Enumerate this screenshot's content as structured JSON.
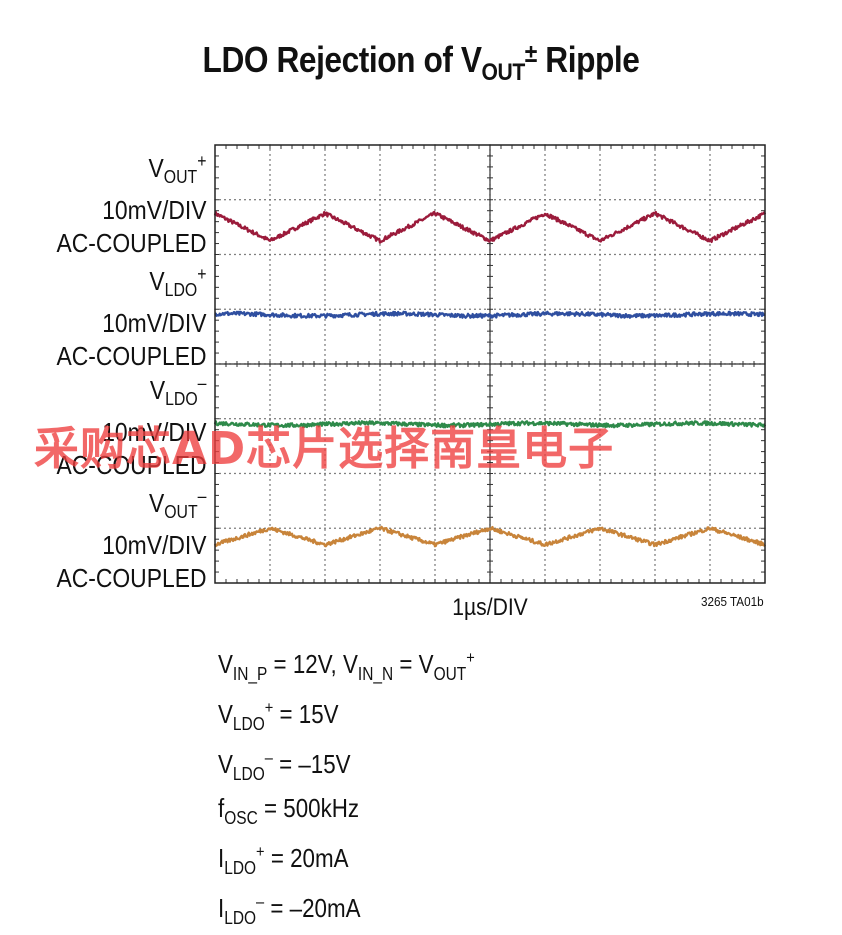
{
  "title": {
    "prefix": "LDO Rejection of V",
    "sub": "OUT",
    "sup": "±",
    "suffix": " Ripple"
  },
  "channels": [
    {
      "name": "V",
      "sub": "OUT",
      "sup": "+",
      "scale": "10mV/DIV",
      "coupling": "AC-COUPLED",
      "color": "#9b1b3b"
    },
    {
      "name": "V",
      "sub": "LDO",
      "sup": "+",
      "scale": "10mV/DIV",
      "coupling": "AC-COUPLED",
      "color": "#2f4fa0"
    },
    {
      "name": "V",
      "sub": "LDO",
      "sup": "–",
      "scale": "10mV/DIV",
      "coupling": "AC-COUPLED",
      "color": "#2e8a4a"
    },
    {
      "name": "V",
      "sub": "OUT",
      "sup": "–",
      "scale": "10mV/DIV",
      "coupling": "AC-COUPLED",
      "color": "#c8843a"
    }
  ],
  "x_axis_label": "1µs/DIV",
  "figure_id": "3265 TA01b",
  "conditions": [
    {
      "parts": [
        [
          "V",
          ""
        ],
        [
          "IN_P",
          "sub"
        ],
        [
          " = 12V, V",
          ""
        ],
        [
          "IN_N",
          "sub"
        ],
        [
          " = V",
          ""
        ],
        [
          "OUT",
          "sub"
        ],
        [
          "+",
          "sup"
        ]
      ]
    },
    {
      "parts": [
        [
          "V",
          ""
        ],
        [
          "LDO",
          "sub"
        ],
        [
          "+",
          "sup"
        ],
        [
          " = 15V",
          ""
        ]
      ]
    },
    {
      "parts": [
        [
          "V",
          ""
        ],
        [
          "LDO",
          "sub"
        ],
        [
          "–",
          "sup"
        ],
        [
          " = –15V",
          ""
        ]
      ]
    },
    {
      "parts": [
        [
          "f",
          ""
        ],
        [
          "OSC",
          "sub"
        ],
        [
          " = 500kHz",
          ""
        ]
      ]
    },
    {
      "parts": [
        [
          "I",
          ""
        ],
        [
          "LDO",
          "sub"
        ],
        [
          "+",
          "sup"
        ],
        [
          " = 20mA",
          ""
        ]
      ]
    },
    {
      "parts": [
        [
          "I",
          ""
        ],
        [
          "LDO",
          "sub"
        ],
        [
          "–",
          "sup"
        ],
        [
          " = –20mA",
          ""
        ]
      ]
    }
  ],
  "watermark": "采购芯AD芯片选择南皇电子",
  "chart_data": {
    "type": "line",
    "title": "LDO Rejection of VOUT± Ripple",
    "xlabel": "1µs/DIV",
    "ylabel": "",
    "x_divisions": 10,
    "y_divisions": 8,
    "x_unit": "div",
    "xlim": [
      0,
      10
    ],
    "grid": true,
    "series": [
      {
        "name": "VOUT+",
        "center_div": 6.5,
        "waveform": "triangle",
        "period_div": 2,
        "peak_to_peak_div": 0.5,
        "phase_div": 1.0
      },
      {
        "name": "VLDO+",
        "center_div": 4.9,
        "waveform": "flat",
        "peak_to_peak_div": 0.05
      },
      {
        "name": "VLDO–",
        "center_div": 2.9,
        "waveform": "flat",
        "peak_to_peak_div": 0.05
      },
      {
        "name": "VOUT–",
        "center_div": 0.85,
        "waveform": "triangle",
        "period_div": 2,
        "peak_to_peak_div": 0.3,
        "phase_div": 2.0
      }
    ]
  }
}
